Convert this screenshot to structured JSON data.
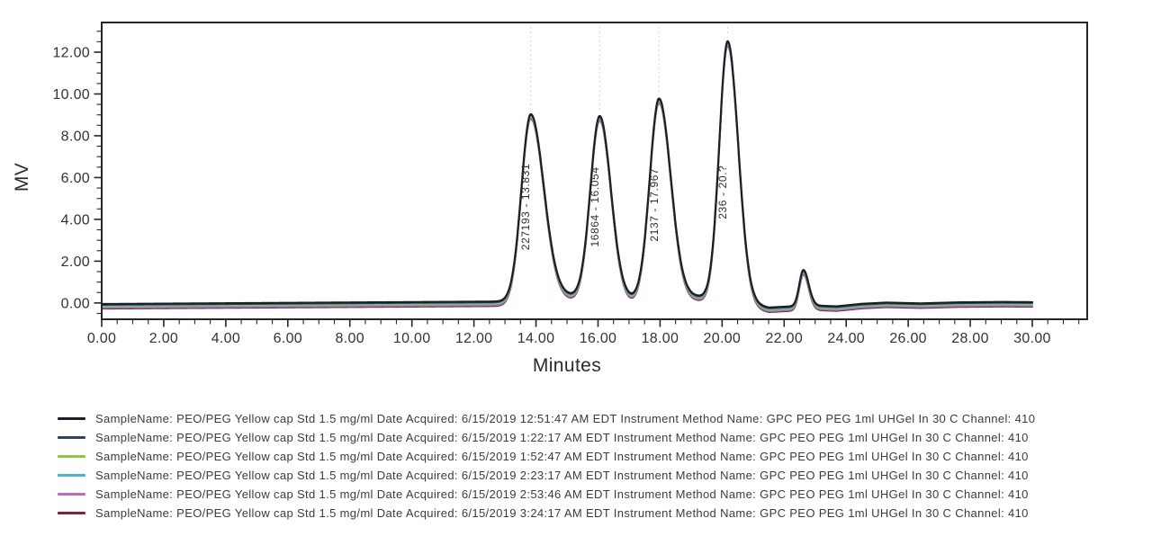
{
  "chart_data": {
    "type": "line",
    "title": "",
    "xlabel": "Minutes",
    "ylabel": "MV",
    "xlim": [
      0,
      31.77
    ],
    "ylim": [
      -0.78,
      13.42
    ],
    "grid": false,
    "legend_position": "bottom",
    "x_major_ticks": [
      0,
      2,
      4,
      6,
      8,
      10,
      12,
      14,
      16,
      18,
      20,
      22,
      24,
      26,
      28,
      30
    ],
    "x_tick_labels": [
      "0.00",
      "2.00",
      "4.00",
      "6.00",
      "8.00",
      "10.00",
      "12.00",
      "14.00",
      "16.00",
      "18.00",
      "20.00",
      "22.00",
      "24.00",
      "26.00",
      "28.00",
      "30.00"
    ],
    "y_major_ticks": [
      0,
      2,
      4,
      6,
      8,
      10,
      12
    ],
    "y_tick_labels": [
      "0.00",
      "2.00",
      "4.00",
      "6.00",
      "8.00",
      "10.00",
      "12.00"
    ],
    "minor_tick_step": 0.5,
    "peaks": [
      {
        "label": "227193 - 13.831",
        "mw": 227193,
        "retention_time": 13.831,
        "apex": 9.0,
        "label_center": 4.6
      },
      {
        "label": "16864 - 16.054",
        "mw": 16864,
        "retention_time": 16.054,
        "apex": 8.9,
        "label_center": 4.6
      },
      {
        "label": "2137 - 17.967",
        "mw": 2137,
        "retention_time": 17.967,
        "apex": 9.75,
        "label_center": 4.7
      },
      {
        "label": "236 - 20.?",
        "mw": 236,
        "retention_time": 20.18,
        "apex": 12.5,
        "label_center": 5.3
      },
      {
        "label": "",
        "retention_time": 22.62,
        "apex": 1.6
      }
    ],
    "curve_model": {
      "t_range": [
        0,
        30
      ],
      "baseline_points": [
        [
          0,
          -0.05
        ],
        [
          12.8,
          0.07
        ],
        [
          20.6,
          0.04
        ],
        [
          21.5,
          -0.22
        ],
        [
          22.1,
          -0.17
        ],
        [
          22.95,
          -0.12
        ],
        [
          23.7,
          -0.16
        ],
        [
          24.5,
          -0.04
        ],
        [
          25.3,
          0.02
        ],
        [
          26.4,
          -0.02
        ],
        [
          27.6,
          0.03
        ],
        [
          29.0,
          0.05
        ],
        [
          30,
          0.04
        ]
      ],
      "components": [
        [
          13.831,
          8.93,
          0.3,
          0.42
        ],
        [
          16.054,
          8.83,
          0.3,
          0.36
        ],
        [
          17.967,
          9.68,
          0.3,
          0.38
        ],
        [
          20.18,
          12.46,
          0.27,
          0.34
        ],
        [
          22.62,
          1.72,
          0.13,
          0.17
        ],
        [
          14.95,
          0.28,
          0.55,
          0.55
        ],
        [
          17.0,
          0.14,
          0.5,
          0.5
        ],
        [
          19.1,
          0.26,
          0.55,
          0.5
        ]
      ]
    },
    "series": [
      {
        "color": "#1e1e28",
        "offset": 0,
        "width": 2.2
      },
      {
        "color": "#33406f",
        "offset": -0.045,
        "width": 1.8
      },
      {
        "color": "#8dc63f",
        "offset": -0.09,
        "width": 1.8
      },
      {
        "color": "#3fb7d8",
        "offset": -0.135,
        "width": 1.8
      },
      {
        "color": "#c468b8",
        "offset": -0.18,
        "width": 1.8
      },
      {
        "color": "#8e1f2f",
        "offset": -0.225,
        "width": 1.8
      }
    ]
  },
  "legend": {
    "entries": [
      {
        "color": "#1e1e28",
        "label": "SampleName: PEO/PEG Yellow cap Std 1.5 mg/ml Date Acquired: 6/15/2019 12:51:47 AM EDT Instrument Method Name: GPC PEO PEG 1ml UHGel In 30 C Channel: 410"
      },
      {
        "color": "#33406f",
        "label": "SampleName: PEO/PEG Yellow cap Std 1.5 mg/ml Date Acquired: 6/15/2019 1:22:17 AM EDT Instrument Method Name: GPC PEO PEG 1ml UHGel In 30 C Channel: 410"
      },
      {
        "color": "#8dc63f",
        "label": "SampleName: PEO/PEG Yellow cap Std 1.5 mg/ml Date Acquired: 6/15/2019 1:52:47 AM EDT Instrument Method Name: GPC PEO PEG 1ml UHGel In 30 C Channel: 410"
      },
      {
        "color": "#3fb7d8",
        "label": "SampleName: PEO/PEG Yellow cap Std 1.5 mg/ml Date Acquired: 6/15/2019 2:23:17 AM EDT Instrument Method Name: GPC PEO PEG 1ml UHGel In 30 C Channel: 410"
      },
      {
        "color": "#c468b8",
        "label": "SampleName: PEO/PEG Yellow cap Std 1.5 mg/ml Date Acquired: 6/15/2019 2:53:46 AM EDT Instrument Method Name: GPC PEO PEG 1ml UHGel In 30 C Channel: 410"
      },
      {
        "color": "#8e1f2f",
        "label": "SampleName: PEO/PEG Yellow cap Std 1.5 mg/ml Date Acquired: 6/15/2019 3:24:17 AM EDT Instrument Method Name: GPC PEO PEG 1ml UHGel In 30 C Channel: 410"
      }
    ]
  }
}
